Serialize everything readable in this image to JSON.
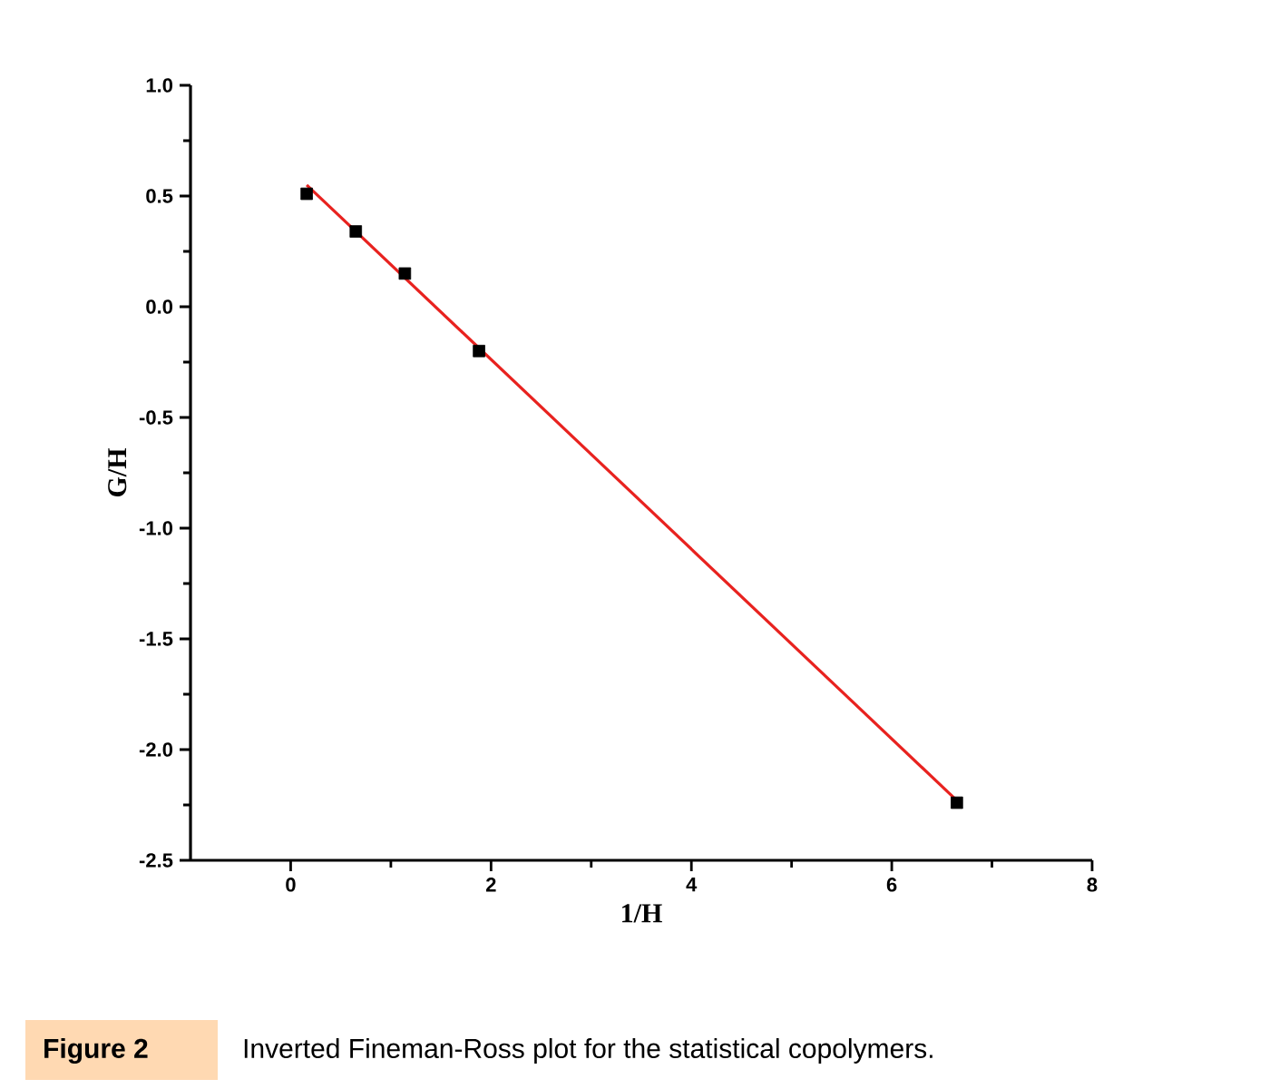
{
  "chart_data": {
    "type": "scatter",
    "xlabel": "1/H",
    "ylabel": "G/H",
    "xlim": [
      -1,
      8
    ],
    "xticks": [
      0,
      2,
      4,
      6,
      8
    ],
    "ylim": [
      -2.5,
      1.0
    ],
    "yticks": [
      {
        "value": -2.5,
        "label": "-2.5"
      },
      {
        "value": -2.0,
        "label": "-2.0"
      },
      {
        "value": -1.5,
        "label": "-1.5"
      },
      {
        "value": -1.0,
        "label": "-1.0"
      },
      {
        "value": -0.5,
        "label": "-0.5"
      },
      {
        "value": 0.0,
        "label": "0.0"
      },
      {
        "value": 0.5,
        "label": "0.5"
      },
      {
        "value": 1.0,
        "label": "1.0"
      }
    ],
    "series": [
      {
        "color": "#000000",
        "marker": "square",
        "x": [
          0.16,
          0.65,
          1.14,
          1.88,
          6.65
        ],
        "values": [
          0.51,
          0.34,
          0.15,
          -0.2,
          -2.24
        ]
      },
      {
        "type": "line",
        "color": "#e8221f",
        "line_style": "solid",
        "x": [
          0.16,
          6.65
        ],
        "values": [
          0.55,
          -2.23
        ]
      }
    ],
    "annotations": [
      "Figure 2",
      "Inverted Fineman-Ross plot for the statistical copolymers."
    ]
  }
}
